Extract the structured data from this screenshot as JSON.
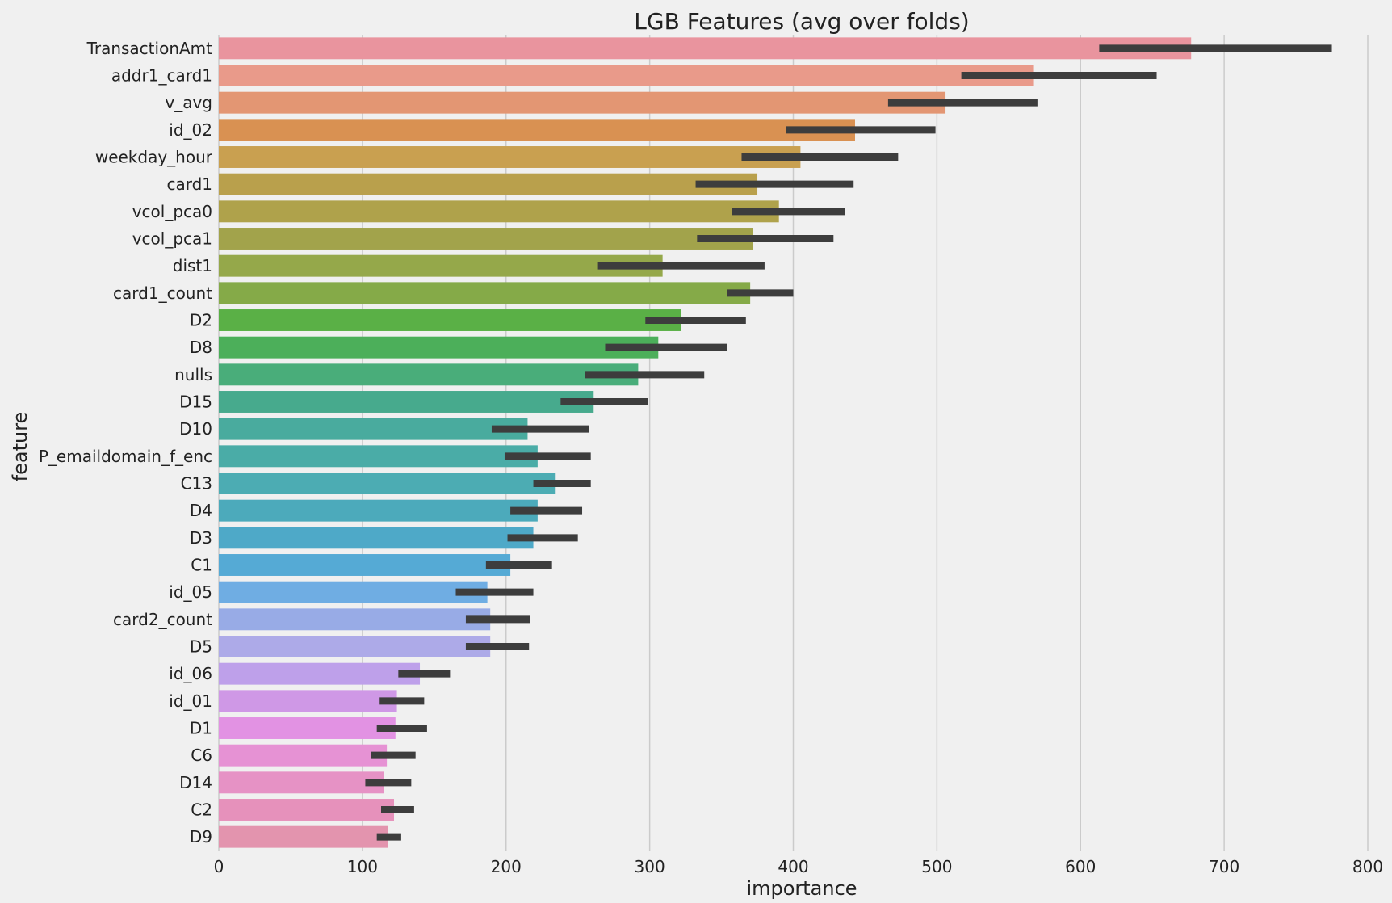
{
  "chart_data": {
    "type": "bar",
    "orientation": "horizontal",
    "title": "LGB Features (avg over folds)",
    "xlabel": "importance",
    "ylabel": "feature",
    "xlim": [
      0,
      800
    ],
    "xticks": [
      0,
      100,
      200,
      300,
      400,
      500,
      600,
      700,
      800
    ],
    "grid": true,
    "error_bars": true,
    "categories": [
      "TransactionAmt",
      "addr1_card1",
      "v_avg",
      "id_02",
      "weekday_hour",
      "card1",
      "vcol_pca0",
      "vcol_pca1",
      "dist1",
      "card1_count",
      "D2",
      "D8",
      "nulls",
      "D15",
      "D10",
      "P_emaildomain_f_enc",
      "C13",
      "D4",
      "D3",
      "C1",
      "id_05",
      "card2_count",
      "D5",
      "id_06",
      "id_01",
      "D1",
      "C6",
      "D14",
      "C2",
      "D9"
    ],
    "values": [
      677,
      567,
      506,
      443,
      405,
      375,
      390,
      372,
      309,
      370,
      322,
      306,
      292,
      261,
      215,
      222,
      234,
      222,
      219,
      203,
      187,
      189,
      189,
      140,
      124,
      123,
      117,
      115,
      122,
      118
    ],
    "errors": [
      [
        613,
        775
      ],
      [
        517,
        653
      ],
      [
        466,
        570
      ],
      [
        395,
        499
      ],
      [
        364,
        473
      ],
      [
        332,
        442
      ],
      [
        357,
        436
      ],
      [
        333,
        428
      ],
      [
        264,
        380
      ],
      [
        354,
        400
      ],
      [
        297,
        367
      ],
      [
        269,
        354
      ],
      [
        255,
        338
      ],
      [
        238,
        299
      ],
      [
        190,
        258
      ],
      [
        199,
        259
      ],
      [
        219,
        259
      ],
      [
        203,
        253
      ],
      [
        201,
        250
      ],
      [
        186,
        232
      ],
      [
        165,
        219
      ],
      [
        172,
        217
      ],
      [
        172,
        216
      ],
      [
        125,
        161
      ],
      [
        112,
        143
      ],
      [
        110,
        145
      ],
      [
        106,
        137
      ],
      [
        102,
        134
      ],
      [
        113,
        136
      ],
      [
        110,
        127
      ]
    ],
    "colors": [
      "#e9949e",
      "#e99a8a",
      "#e39673",
      "#d99152",
      "#c9a050",
      "#b9a04c",
      "#afa24b",
      "#a2a34b",
      "#95a84a",
      "#85aa48",
      "#5ab046",
      "#4caf5a",
      "#49ad7a",
      "#47aa8d",
      "#49ab9e",
      "#4aaca7",
      "#4cacb3",
      "#4caabb",
      "#4ea9c8",
      "#55aad5",
      "#6fade3",
      "#98abe6",
      "#adaae8",
      "#bea0ea",
      "#cf98e6",
      "#e292e3",
      "#e692d4",
      "#e692c5",
      "#e691bb",
      "#e394ae"
    ]
  }
}
